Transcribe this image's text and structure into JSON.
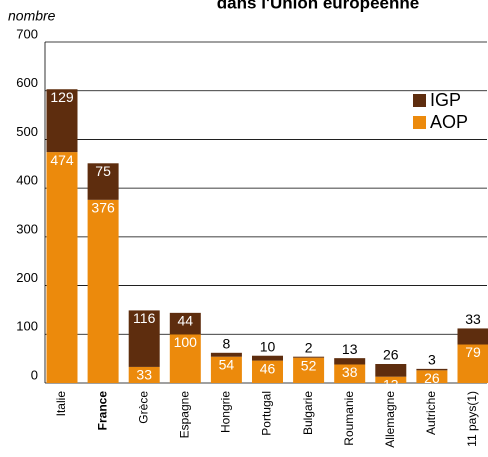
{
  "chart_data": {
    "type": "bar",
    "stacked": true,
    "title": "dans l'Union européenne",
    "y_label": "nombre",
    "categories": [
      "Italie",
      "France",
      "Grèce",
      "Espagne",
      "Hongrie",
      "Portugal",
      "Bulgarie",
      "Roumanie",
      "Allemagne",
      "Autriche",
      "11 pays(1)"
    ],
    "series": [
      {
        "name": "AOP",
        "color": "#ec8a0c",
        "values": [
          474,
          376,
          33,
          100,
          54,
          46,
          52,
          38,
          13,
          26,
          79
        ]
      },
      {
        "name": "IGP",
        "color": "#5e2d0e",
        "values": [
          129,
          75,
          116,
          44,
          8,
          10,
          2,
          13,
          26,
          3,
          33
        ]
      }
    ],
    "ylim": [
      0,
      700
    ],
    "yticks": [
      0,
      100,
      200,
      300,
      400,
      500,
      600,
      700
    ],
    "grid": true,
    "legend": "upper right"
  }
}
